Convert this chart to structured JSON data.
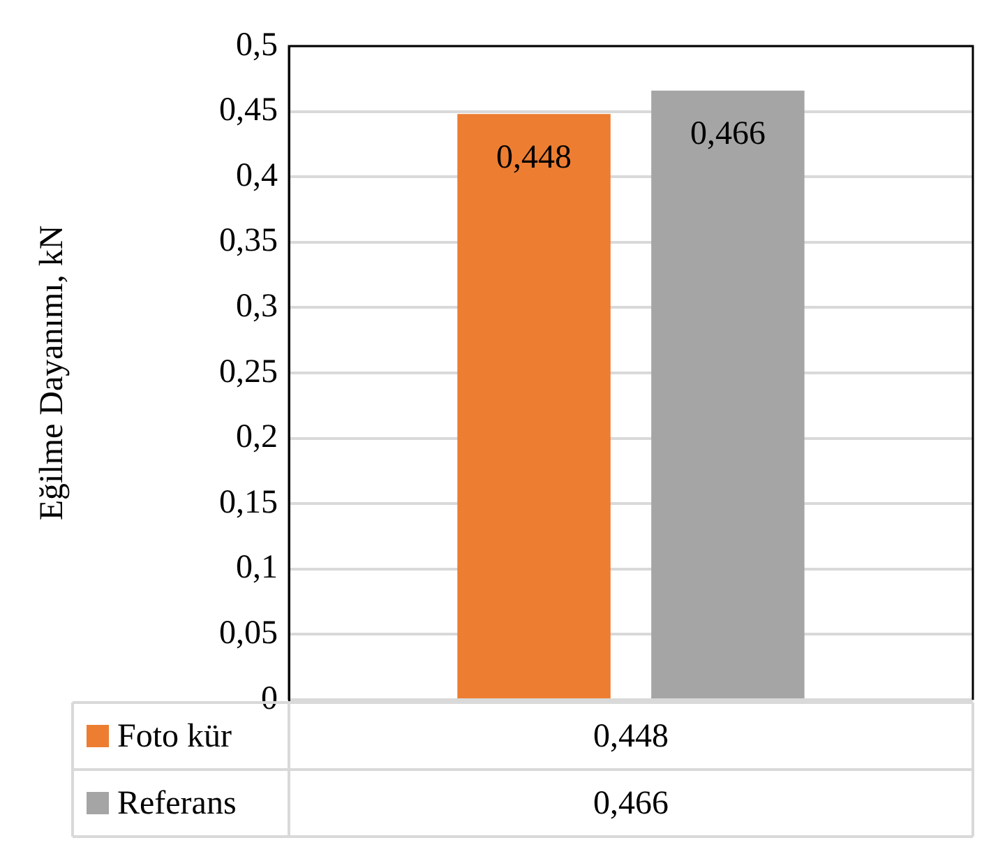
{
  "chart_data": {
    "type": "bar",
    "ylabel": "Eğilme Dayanımı, kN",
    "categories": [
      null
    ],
    "series": [
      {
        "name": "Foto kür",
        "color": "#ed7d31",
        "values": [
          0.448
        ],
        "value_labels": [
          "0,448"
        ]
      },
      {
        "name": "Referans",
        "color": "#a5a5a5",
        "values": [
          0.466
        ],
        "value_labels": [
          "0,466"
        ]
      }
    ],
    "ylim": [
      0,
      0.5
    ],
    "yticks": [
      0,
      {
        "value": 0.05,
        "label": "0,05"
      },
      {
        "value": 0.1,
        "label": "0,1"
      },
      {
        "value": 0.15,
        "label": "0,15"
      },
      {
        "value": 0.2,
        "label": "0,2"
      },
      {
        "value": 0.25,
        "label": "0,25"
      },
      {
        "value": 0.3,
        "label": "0,3"
      },
      {
        "value": 0.35,
        "label": "0,35"
      },
      {
        "value": 0.4,
        "label": "0,4"
      },
      {
        "value": 0.45,
        "label": "0,45"
      },
      {
        "value": 0.5,
        "label": "0,5"
      }
    ],
    "grid": "y",
    "legend": "bottom"
  }
}
